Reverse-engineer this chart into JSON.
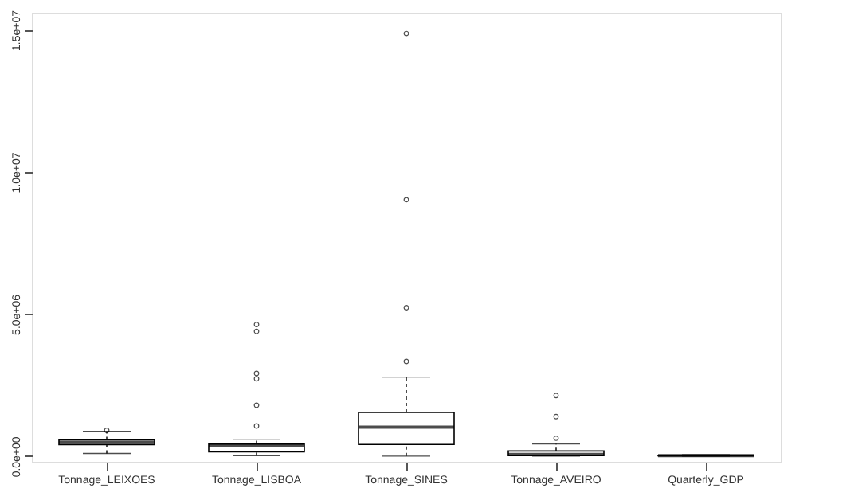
{
  "chart_data": {
    "type": "box",
    "categories": [
      "Tonnage_LEIXOES",
      "Tonnage_LISBOA",
      "Tonnage_SINES",
      "Tonnage_AVEIRO",
      "Quarterly_GDP"
    ],
    "boxes": [
      {
        "low": 94000,
        "q1": 406000,
        "median": 483000,
        "q3": 572000,
        "high": 872000,
        "outliers": [
          906000
        ]
      },
      {
        "low": 17000,
        "q1": 150000,
        "median": 389000,
        "q3": 428000,
        "high": 594000,
        "outliers": [
          1060000,
          1790000,
          2720000,
          2910000,
          4390000,
          4630000
        ]
      },
      {
        "low": 0,
        "q1": 410000,
        "median": 1020000,
        "q3": 1540000,
        "high": 2780000,
        "outliers": [
          3330000,
          5220000,
          9020000,
          14870000
        ]
      },
      {
        "low": 0,
        "q1": 20000,
        "median": 56000,
        "q3": 183000,
        "high": 428000,
        "outliers": [
          628000,
          1390000,
          2130000
        ]
      },
      {
        "low": 0,
        "q1": 10000,
        "median": 20000,
        "q3": 30000,
        "high": 50000
      }
    ],
    "color": "#000000",
    "ylim": [
      -200000,
      15600000
    ],
    "yticks": [
      {
        "value": 0,
        "label": "0.0e+00"
      },
      {
        "value": 5000000,
        "label": "5.0e+06"
      },
      {
        "value": 10000000,
        "label": "1.0e+07"
      },
      {
        "value": 15000000,
        "label": "1.5e+07"
      }
    ],
    "grid": false
  }
}
